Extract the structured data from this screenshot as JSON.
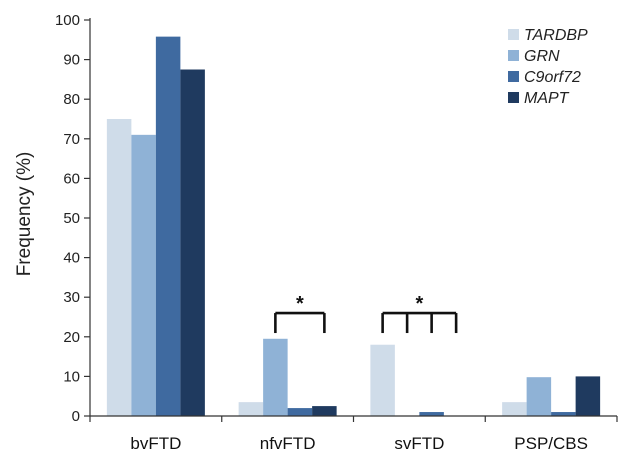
{
  "chart_data": {
    "type": "bar",
    "categories": [
      "bvFTD",
      "nfvFTD",
      "svFTD",
      "PSP/CBS"
    ],
    "series": [
      {
        "name": "TARDBP",
        "values": [
          75,
          3.5,
          18,
          3.5
        ],
        "color": "#cfdce9"
      },
      {
        "name": "GRN",
        "values": [
          71,
          19.5,
          0,
          9.8
        ],
        "color": "#8fb2d6"
      },
      {
        "name": "C9orf72",
        "values": [
          95.8,
          2,
          1,
          1
        ],
        "color": "#3f6aa0"
      },
      {
        "name": "MAPT",
        "values": [
          87.5,
          2.5,
          0,
          10
        ],
        "color": "#1f3a5f"
      }
    ],
    "ylabel": "Frequency (%)",
    "ylim": [
      0,
      100
    ],
    "yticks": [
      0,
      10,
      20,
      30,
      40,
      50,
      60,
      70,
      80,
      90,
      100
    ],
    "legend_position": "top-right",
    "annotations": [
      {
        "text": "*",
        "category": "nfvFTD",
        "series_from": "GRN",
        "series_to": "MAPT",
        "level": 26
      },
      {
        "text": "*",
        "category": "svFTD",
        "series_from": "TARDBP",
        "series_to": "MAPT",
        "level": 26,
        "style": "multi-bracket"
      }
    ]
  }
}
